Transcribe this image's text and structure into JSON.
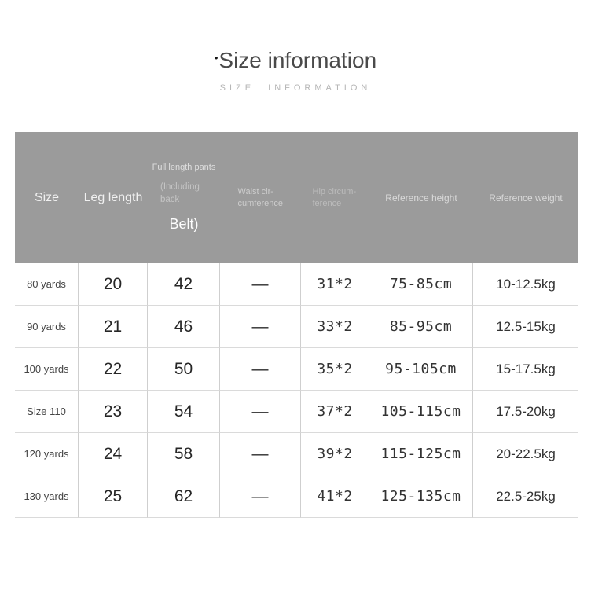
{
  "page": {
    "title": "Size information",
    "title_bullet": "•",
    "subtitle": "SIZE INFORMATION"
  },
  "colors": {
    "header_bg": "#9b9b9b",
    "header_text": "#f1f1f1",
    "body_text": "#262626",
    "row_border": "#dadada",
    "column_border": "#cfcfcf",
    "title_text": "#4a4a4a",
    "subtitle_text": "#b6b6b6"
  },
  "table": {
    "header": {
      "size": "Size",
      "leg": "Leg length",
      "full_top": "Full length pants",
      "full_mid": "(Including back",
      "full_bottom": "Belt)",
      "waist": "Waist cir-cumference",
      "hip": "Hip circum-ference",
      "height": "Reference height",
      "weight": "Reference weight"
    },
    "rows": [
      {
        "size": "80 yards",
        "leg": "20",
        "full": "42",
        "waist": "—",
        "hip": "31*2",
        "height": "75-85cm",
        "weight": "10-12.5kg"
      },
      {
        "size": "90 yards",
        "leg": "21",
        "full": "46",
        "waist": "—",
        "hip": "33*2",
        "height": "85-95cm",
        "weight": "12.5-15kg"
      },
      {
        "size": "100 yards",
        "leg": "22",
        "full": "50",
        "waist": "—",
        "hip": "35*2",
        "height": "95-105cm",
        "weight": "15-17.5kg"
      },
      {
        "size": "Size 110",
        "leg": "23",
        "full": "54",
        "waist": "—",
        "hip": "37*2",
        "height": "105-115cm",
        "weight": "17.5-20kg"
      },
      {
        "size": "120 yards",
        "leg": "24",
        "full": "58",
        "waist": "—",
        "hip": "39*2",
        "height": "115-125cm",
        "weight": "20-22.5kg"
      },
      {
        "size": "130 yards",
        "leg": "25",
        "full": "62",
        "waist": "—",
        "hip": "41*2",
        "height": "125-135cm",
        "weight": "22.5-25kg"
      }
    ]
  },
  "chart_data": {
    "type": "table",
    "title": "Size information",
    "columns": [
      "Size",
      "Leg length",
      "Full length pants (Including back Belt)",
      "Waist circumference",
      "Hip circumference",
      "Reference height",
      "Reference weight"
    ],
    "rows": [
      [
        "80 yards",
        "20",
        "42",
        "—",
        "31*2",
        "75-85cm",
        "10-12.5kg"
      ],
      [
        "90 yards",
        "21",
        "46",
        "—",
        "33*2",
        "85-95cm",
        "12.5-15kg"
      ],
      [
        "100 yards",
        "22",
        "50",
        "—",
        "35*2",
        "95-105cm",
        "15-17.5kg"
      ],
      [
        "Size 110",
        "23",
        "54",
        "—",
        "37*2",
        "105-115cm",
        "17.5-20kg"
      ],
      [
        "120 yards",
        "24",
        "58",
        "—",
        "39*2",
        "115-125cm",
        "20-22.5kg"
      ],
      [
        "130 yards",
        "25",
        "62",
        "—",
        "41*2",
        "125-135cm",
        "22.5-25kg"
      ]
    ]
  }
}
